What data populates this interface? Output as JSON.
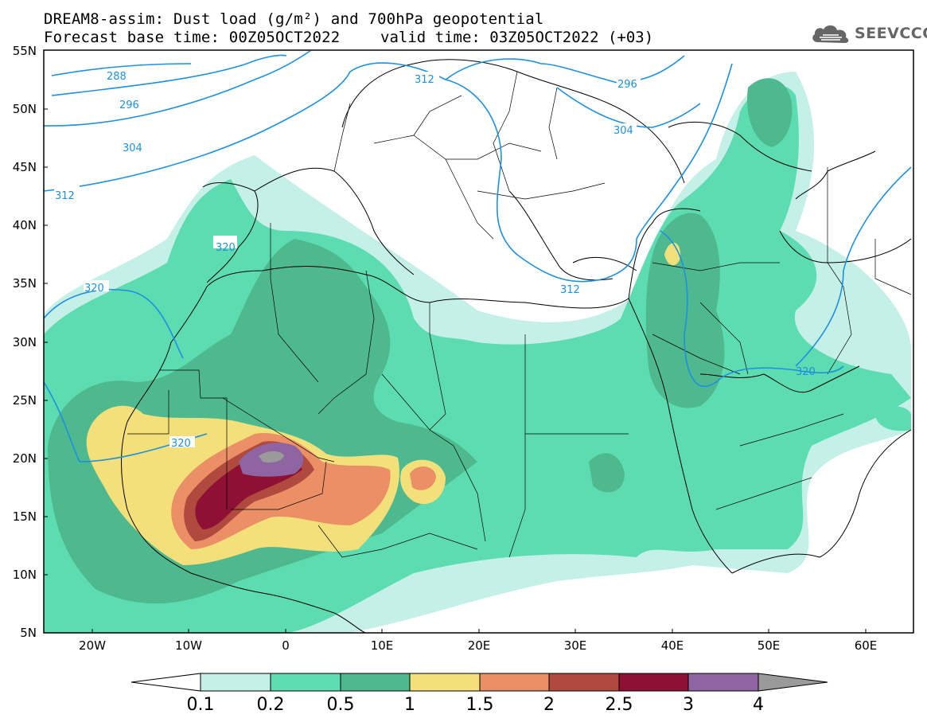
{
  "title": {
    "line1": "DREAM8-assim: Dust load (g/m²) and 700hPa geopotential",
    "base": "Forecast base time: 00Z05OCT2022",
    "valid": "valid time: 03Z05OCT2022 (+03)"
  },
  "logo": {
    "text": "SEEVCCC",
    "icon": "cloud-icon"
  },
  "axes": {
    "lat_labels": [
      "55N",
      "50N",
      "45N",
      "40N",
      "35N",
      "30N",
      "25N",
      "20N",
      "15N",
      "10N",
      "5N"
    ],
    "lon_labels": [
      "20W",
      "10W",
      "0",
      "10E",
      "20E",
      "30E",
      "40E",
      "50E",
      "60E"
    ],
    "lon_range": [
      -25,
      65
    ],
    "lat_range": [
      5,
      55
    ]
  },
  "contour_labels": [
    "288",
    "296",
    "304",
    "312",
    "320",
    "312",
    "296",
    "304",
    "320",
    "312",
    "320",
    "320"
  ],
  "colorbar": {
    "labels": [
      "0.1",
      "0.2",
      "0.5",
      "1",
      "1.5",
      "2",
      "2.5",
      "3",
      "4"
    ],
    "colors": [
      "#c4f0e8",
      "#5cdcb0",
      "#4eb98e",
      "#f4e07a",
      "#eb8f66",
      "#b04a3e",
      "#8e1035",
      "#8e64a2",
      "#9a9a9a"
    ]
  }
}
